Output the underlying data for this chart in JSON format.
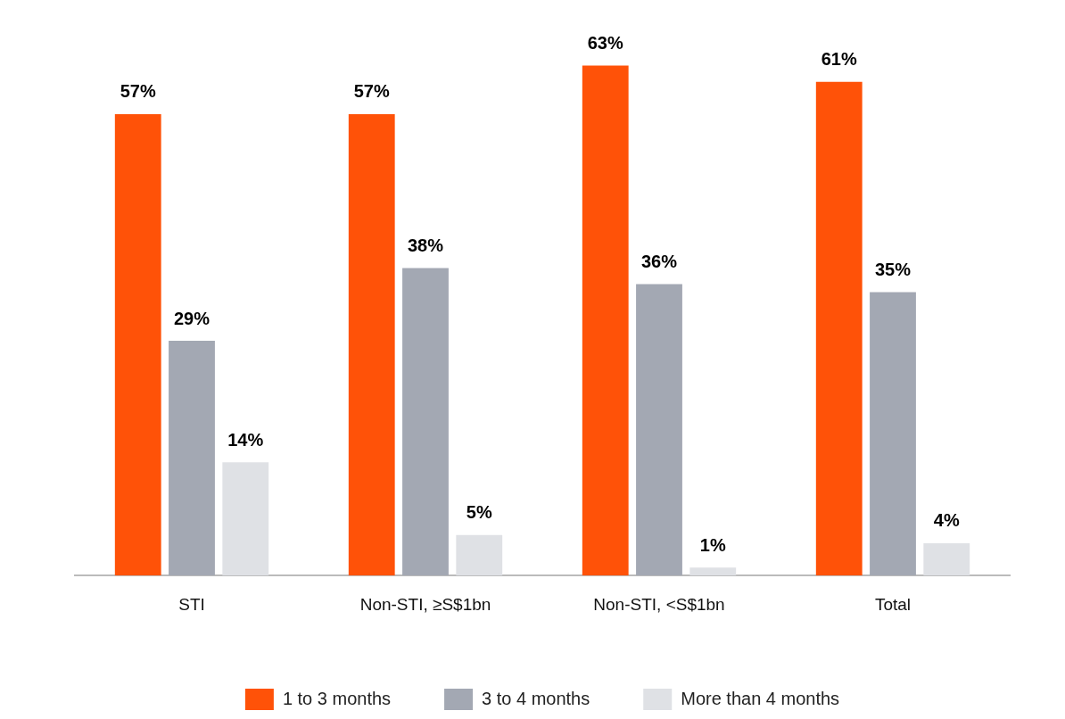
{
  "chart_data": {
    "type": "bar",
    "categories": [
      "STI",
      "Non-STI, ≥S$1bn",
      "Non-STI, <S$1bn",
      "Total"
    ],
    "series": [
      {
        "name": "1 to 3 months",
        "color": "#ff5208",
        "values": [
          57,
          57,
          63,
          61
        ],
        "value_labels": [
          "57%",
          "57%",
          "63%",
          "61%"
        ]
      },
      {
        "name": "3 to 4 months",
        "color": "#a3a8b3",
        "values": [
          29,
          38,
          36,
          35
        ],
        "value_labels": [
          "29%",
          "38%",
          "36%",
          "35%"
        ]
      },
      {
        "name": "More than 4 months",
        "color": "#dfe1e5",
        "values": [
          14,
          5,
          1,
          4
        ],
        "value_labels": [
          "14%",
          "5%",
          "1%",
          "4%"
        ]
      }
    ],
    "tick_labels": "x",
    "grid": false,
    "legend": "bottom"
  }
}
